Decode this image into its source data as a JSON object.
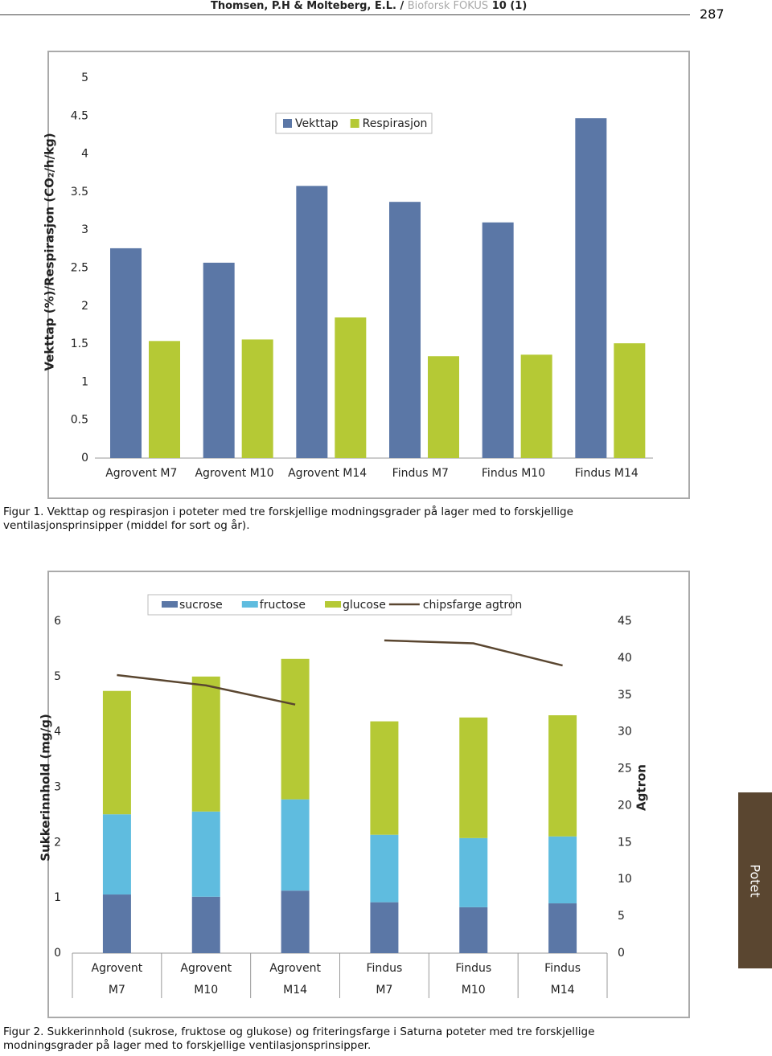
{
  "header": {
    "authors": "Thomsen, P.H & Molteberg, E.L. /",
    "journal": "Bioforsk FOKUS",
    "issue": "10 (1)",
    "page": "287"
  },
  "side_tab": "Potet",
  "captions": [
    "Figur 1. Vekttap og respirasjon i poteter med tre forskjellige modningsgrader på lager med to forskjellige ventilasjonsprinsipper (middel for sort og år).",
    "Figur 2. Sukkerinnhold (sukrose, fruktose og glukose) og friteringsfarge i Saturna poteter med tre forskjellige modningsgrader på lager med to forskjellige ventilasjonsprinsipper."
  ],
  "chart_data": [
    {
      "type": "bar",
      "y_label": "Vekttap (%)/Respirasjon (CO₂/h/kg)",
      "categories": [
        "Agrovent M7",
        "Agrovent M10",
        "Agrovent M14",
        "Findus M7",
        "Findus M10",
        "Findus M14"
      ],
      "series": [
        {
          "name": "Vekttap",
          "color": "#5b77a6",
          "values": [
            2.76,
            2.57,
            3.58,
            3.37,
            3.1,
            4.47
          ]
        },
        {
          "name": "Respirasjon",
          "color": "#b5c935",
          "values": [
            1.54,
            1.56,
            1.85,
            1.34,
            1.36,
            1.51
          ]
        }
      ],
      "ylim": [
        0,
        5
      ],
      "yticks": [
        0,
        0.5,
        1,
        1.5,
        2,
        2.5,
        3,
        3.5,
        4,
        4.5,
        5
      ],
      "grid": false,
      "legend": "top"
    },
    {
      "type": "stacked-bar-line",
      "y_label": "Sukkerinnhold (mg/g)",
      "y2_label": "Agtron",
      "categories": [
        [
          "Agrovent",
          "M7"
        ],
        [
          "Agrovent",
          "M10"
        ],
        [
          "Agrovent",
          "M14"
        ],
        [
          "Findus",
          "M7"
        ],
        [
          "Findus",
          "M10"
        ],
        [
          "Findus",
          "M14"
        ]
      ],
      "series": [
        {
          "name": "sucrose",
          "color": "#5b77a6",
          "values": [
            1.06,
            1.02,
            1.13,
            0.92,
            0.83,
            0.9
          ]
        },
        {
          "name": "fructose",
          "color": "#5fbcdf",
          "values": [
            1.45,
            1.54,
            1.65,
            1.22,
            1.25,
            1.21
          ]
        },
        {
          "name": "glucose",
          "color": "#b5c935",
          "values": [
            2.23,
            2.44,
            2.54,
            2.05,
            2.18,
            2.19
          ]
        },
        {
          "name": "chipsfarge agtron",
          "color": "#5a4630",
          "axis": "y2",
          "values": [
            37.7,
            36.3,
            33.7,
            42.4,
            42.0,
            39.0
          ]
        }
      ],
      "ylim": [
        0,
        6
      ],
      "yticks": [
        0,
        1,
        2,
        3,
        4,
        5,
        6
      ],
      "y2lim": [
        0,
        45
      ],
      "y2ticks": [
        0,
        5,
        10,
        15,
        20,
        25,
        30,
        35,
        40,
        45
      ],
      "grid": false,
      "legend": "top"
    }
  ]
}
